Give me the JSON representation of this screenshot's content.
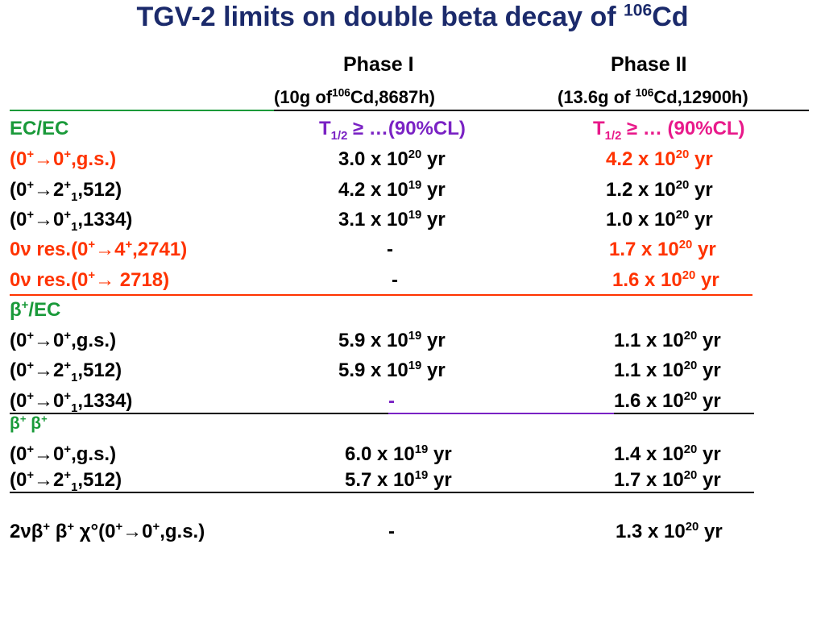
{
  "title": {
    "text": "TGV-2 limits on double beta decay of ",
    "iso": "106",
    "el": "Cd"
  },
  "header": {
    "phase1": "Phase I",
    "phase2": "Phase II",
    "p1_a": "(10g of",
    "p1_iso": "106",
    "p1_b": "Cd,8687h)",
    "p2_a": "(13.6g of ",
    "p2_iso": "106",
    "p2_b": "Cd,12900h)"
  },
  "ecec": {
    "label": "EC/EC",
    "t1": "T",
    "t1sub": "1/2",
    "t1rest": " ≥ …(90%CL)",
    "t2": "T",
    "t2sub": "1/2",
    "t2rest": " ≥ … (90%CL)",
    "rows": [
      {
        "a": "(0",
        "s1": "+",
        "b": "→0",
        "s2": "+",
        "c": ",g.s.)",
        "p1": "3.0 x 10",
        "p1e": "20",
        "p1u": " yr",
        "p2": "4.2 x 10",
        "p2e": "20",
        "p2u": " yr"
      },
      {
        "a": "(0",
        "s1": "+",
        "b": "→2",
        "s2": "+",
        "sb": "1",
        "c": ",512)",
        "p1": "4.2 x 10",
        "p1e": "19",
        "p1u": " yr",
        "p2": "1.2 x 10",
        "p2e": "20",
        "p2u": " yr"
      },
      {
        "a": "(0",
        "s1": "+",
        "b": "→0",
        "s2": "+",
        "sb": "1",
        "c": ",1334)",
        "p1": "3.1 x 10",
        "p1e": "19",
        "p1u": " yr",
        "p2": "1.0 x 10",
        "p2e": "20",
        "p2u": " yr"
      },
      {
        "a": "0ν res.(0",
        "s1": "+",
        "b": "→4",
        "s2": "+",
        "c": ",2741)",
        "p1": "-",
        "p2": "1.7 x 10",
        "p2e": "20",
        "p2u": " yr"
      },
      {
        "a": "0ν res.(0",
        "s1": "+",
        "b": "→ 2718)",
        "p1": "-",
        "p2": "1.6 x 10",
        "p2e": "20",
        "p2u": " yr"
      }
    ]
  },
  "bplusec": {
    "label": "β",
    "labelsup": "+",
    "labelrest": "/EC",
    "rows": [
      {
        "a": "(0",
        "s1": "+",
        "b": "→0",
        "s2": "+",
        "c": ",g.s.)",
        "p1": "5.9 x 10",
        "p1e": "19",
        "p1u": " yr",
        "p2": "1.1 x 10",
        "p2e": "20",
        "p2u": " yr"
      },
      {
        "a": "(0",
        "s1": "+",
        "b": "→2",
        "s2": "+",
        "sb": "1",
        "c": ",512)",
        "p1": "5.9 x 10",
        "p1e": "19",
        "p1u": " yr",
        "p2": "1.1 x 10",
        "p2e": "20",
        "p2u": " yr"
      },
      {
        "a": "(0",
        "s1": "+",
        "b": "→0",
        "s2": "+",
        "sb": "1",
        "c": ",1334)",
        "p1": "-",
        "p2": "1.6 x 10",
        "p2e": "20",
        "p2u": " yr"
      }
    ]
  },
  "bplusbplus": {
    "l1": "β",
    "s1": "+",
    "l2": " β",
    "s2": "+",
    "rows": [
      {
        "a": "(0",
        "s1": "+",
        "b": "→0",
        "s2": "+",
        "c": ",g.s.)",
        "p1": "6.0 x 10",
        "p1e": "19",
        "p1u": " yr",
        "p2": "1.4 x 10",
        "p2e": "20",
        "p2u": " yr"
      },
      {
        "a": "(0",
        "s1": "+",
        "b": "→2",
        "s2": "+",
        "sb": "1",
        "c": ",512)",
        "p1": "5.7 x 10",
        "p1e": "19",
        "p1u": " yr",
        "p2": "1.7 x 10",
        "p2e": "20",
        "p2u": " yr"
      }
    ]
  },
  "last": {
    "a": "2νβ",
    "s1": "+",
    "b": " β",
    "s2": "+",
    "c": " χ°(0",
    "s3": "+",
    "d": "→0",
    "s4": "+",
    "e": ",g.s.)",
    "p1": "-",
    "p2": "1.3 x 10",
    "p2e": "20",
    "p2u": " yr"
  },
  "colors": {
    "title": "#1b2a6b",
    "red": "#ff3300",
    "green": "#1a9a3a",
    "purple": "#7a22c4",
    "magenta": "#e8198a"
  }
}
